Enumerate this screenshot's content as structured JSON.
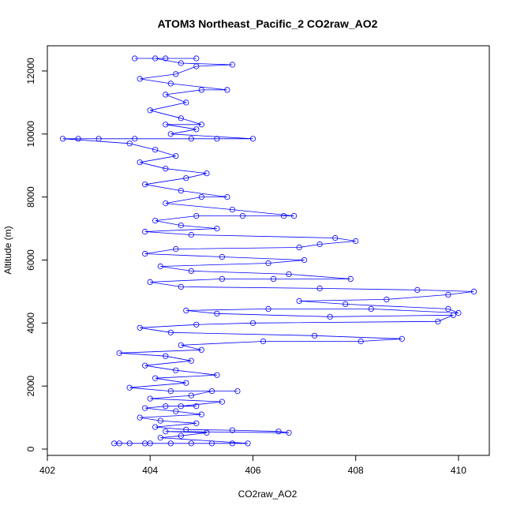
{
  "chart_data": {
    "type": "line",
    "title": "ATOM3 Northeast_Pacific_2 CO2raw_AO2",
    "xlabel": "CO2raw_AO2",
    "ylabel": "Altitude (m)",
    "xlim": [
      402,
      410.6
    ],
    "ylim": [
      -200,
      12800
    ],
    "xticks": [
      402,
      404,
      406,
      408,
      410
    ],
    "yticks": [
      0,
      2000,
      4000,
      6000,
      8000,
      10000,
      12000
    ],
    "grid": false,
    "legend": "none",
    "series_color": "#0000ff",
    "marker": "open-circle",
    "series": [
      {
        "values": [
          [
            404.0,
            180
          ],
          [
            403.6,
            180
          ],
          [
            403.4,
            180
          ],
          [
            403.3,
            180
          ],
          [
            403.9,
            180
          ],
          [
            404.4,
            180
          ],
          [
            404.8,
            180
          ],
          [
            405.2,
            180
          ],
          [
            405.6,
            180
          ],
          [
            405.9,
            180
          ],
          [
            404.2,
            360
          ],
          [
            404.6,
            420
          ],
          [
            405.1,
            520
          ],
          [
            404.3,
            560
          ],
          [
            406.7,
            520
          ],
          [
            406.5,
            560
          ],
          [
            405.6,
            600
          ],
          [
            404.7,
            620
          ],
          [
            404.1,
            700
          ],
          [
            404.9,
            820
          ],
          [
            404.2,
            900
          ],
          [
            403.8,
            1000
          ],
          [
            405.0,
            1100
          ],
          [
            404.5,
            1200
          ],
          [
            403.9,
            1300
          ],
          [
            404.3,
            1360
          ],
          [
            404.9,
            1360
          ],
          [
            404.6,
            1360
          ],
          [
            405.4,
            1500
          ],
          [
            404.0,
            1600
          ],
          [
            404.8,
            1700
          ],
          [
            405.2,
            1840
          ],
          [
            405.7,
            1840
          ],
          [
            404.4,
            1840
          ],
          [
            403.6,
            1950
          ],
          [
            404.7,
            2100
          ],
          [
            404.1,
            2250
          ],
          [
            405.3,
            2350
          ],
          [
            404.5,
            2500
          ],
          [
            403.9,
            2650
          ],
          [
            404.8,
            2800
          ],
          [
            404.3,
            2950
          ],
          [
            403.4,
            3050
          ],
          [
            405.0,
            3150
          ],
          [
            404.6,
            3300
          ],
          [
            406.2,
            3420
          ],
          [
            408.1,
            3420
          ],
          [
            408.9,
            3500
          ],
          [
            407.2,
            3600
          ],
          [
            404.4,
            3700
          ],
          [
            403.8,
            3850
          ],
          [
            404.9,
            3950
          ],
          [
            406.0,
            4000
          ],
          [
            409.6,
            4050
          ],
          [
            409.9,
            4250
          ],
          [
            407.5,
            4200
          ],
          [
            405.3,
            4300
          ],
          [
            404.7,
            4400
          ],
          [
            406.3,
            4450
          ],
          [
            408.3,
            4450
          ],
          [
            410.0,
            4320
          ],
          [
            409.8,
            4450
          ],
          [
            407.8,
            4600
          ],
          [
            406.9,
            4700
          ],
          [
            408.6,
            4750
          ],
          [
            409.8,
            4900
          ],
          [
            410.3,
            5000
          ],
          [
            409.2,
            5050
          ],
          [
            407.3,
            5100
          ],
          [
            404.6,
            5150
          ],
          [
            404.0,
            5300
          ],
          [
            405.4,
            5400
          ],
          [
            406.4,
            5400
          ],
          [
            407.9,
            5400
          ],
          [
            406.7,
            5550
          ],
          [
            404.8,
            5650
          ],
          [
            404.2,
            5800
          ],
          [
            406.3,
            5900
          ],
          [
            407.0,
            6000
          ],
          [
            405.4,
            6100
          ],
          [
            403.9,
            6200
          ],
          [
            404.5,
            6350
          ],
          [
            406.9,
            6400
          ],
          [
            407.3,
            6500
          ],
          [
            408.0,
            6600
          ],
          [
            407.6,
            6700
          ],
          [
            404.8,
            6800
          ],
          [
            403.9,
            6900
          ],
          [
            405.3,
            7000
          ],
          [
            404.6,
            7100
          ],
          [
            404.1,
            7250
          ],
          [
            404.9,
            7400
          ],
          [
            405.8,
            7400
          ],
          [
            406.6,
            7400
          ],
          [
            406.8,
            7400
          ],
          [
            405.6,
            7600
          ],
          [
            404.3,
            7800
          ],
          [
            405.0,
            8000
          ],
          [
            405.5,
            8000
          ],
          [
            404.6,
            8200
          ],
          [
            403.9,
            8400
          ],
          [
            404.7,
            8600
          ],
          [
            405.1,
            8750
          ],
          [
            404.3,
            8900
          ],
          [
            403.8,
            9100
          ],
          [
            404.5,
            9300
          ],
          [
            404.1,
            9500
          ],
          [
            403.6,
            9700
          ],
          [
            402.3,
            9850
          ],
          [
            402.6,
            9850
          ],
          [
            403.0,
            9850
          ],
          [
            403.7,
            9850
          ],
          [
            404.8,
            9850
          ],
          [
            405.3,
            9850
          ],
          [
            406.0,
            9850
          ],
          [
            404.4,
            10000
          ],
          [
            404.9,
            10150
          ],
          [
            404.3,
            10300
          ],
          [
            405.0,
            10300
          ],
          [
            404.6,
            10500
          ],
          [
            404.0,
            10750
          ],
          [
            404.7,
            11000
          ],
          [
            404.3,
            11250
          ],
          [
            405.0,
            11400
          ],
          [
            405.5,
            11400
          ],
          [
            404.4,
            11600
          ],
          [
            403.8,
            11750
          ],
          [
            404.5,
            11900
          ],
          [
            404.9,
            12150
          ],
          [
            405.6,
            12200
          ],
          [
            404.6,
            12250
          ],
          [
            404.1,
            12400
          ],
          [
            403.7,
            12400
          ],
          [
            404.3,
            12400
          ],
          [
            404.9,
            12400
          ]
        ]
      }
    ]
  }
}
